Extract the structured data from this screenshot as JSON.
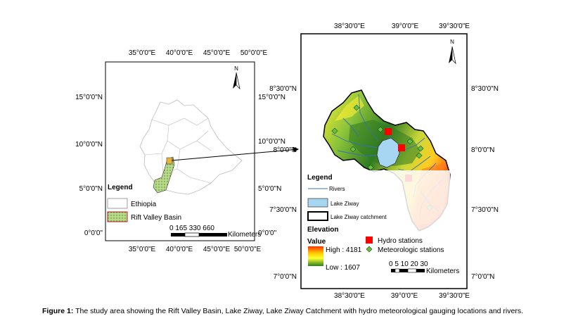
{
  "left_map": {
    "top_ticks": [
      "35°0'0\"E",
      "40°0'0\"E",
      "45°0'0\"E",
      "50°0'0\"E"
    ],
    "bottom_ticks": [
      "35°0'0\"E",
      "40°0'0\"E",
      "45°0'0\"E",
      "50°0'0\"E"
    ],
    "left_ticks": [
      "15°0'0\"N",
      "10°0'0\"N",
      "5°0'0\"N",
      "0°0'0\""
    ],
    "right_ticks": [
      "15°0'0\"N",
      "10°0'0\"N",
      "5°0'0\"N",
      "0°0'0\""
    ],
    "north_label": "N",
    "legend_title": "Legend",
    "legend_items": [
      "Ethiopia",
      "Rift Valley Basin"
    ],
    "scale_numbers": "0   165 330         660",
    "scale_unit": "Kilometers"
  },
  "right_map": {
    "top_ticks": [
      "38°30'0\"E",
      "39°0'0\"E",
      "39°30'0\"E"
    ],
    "bottom_ticks": [
      "38°30'0\"E",
      "39°0'0\"E",
      "39°30'0\"E"
    ],
    "left_ticks": [
      "8°30'0\"N",
      "8°0'0\"N",
      "7°30'0\"N",
      "7°0'0\"N"
    ],
    "right_ticks": [
      "8°30'0\"N",
      "8°0'0\"N",
      "7°30'0\"N",
      "7°0'0\"N"
    ],
    "north_label": "N",
    "legend_title": "Legend",
    "legend_rivers": "Rivers",
    "legend_lake": "Lake Ziway",
    "legend_catchment": "Lake Ziway catchment",
    "elevation_title": "Elevation",
    "value_label": "Value",
    "high_label": "High : 4181",
    "low_label": "Low : 1607",
    "hydro_label": "Hydro stations",
    "met_label": "Meteorologic stations",
    "scale_numbers": "0 5 10  20  30",
    "scale_unit": "Kilometers"
  },
  "colors": {
    "rift_fill": "#b8d88a",
    "lake": "#a7d6f2",
    "hydro": "#ff0000",
    "met": "#66c23a",
    "river": "#3a6fb5",
    "elev_high": "#ff3300",
    "elev_mid": "#ffff33",
    "elev_low": "#2e7d1e"
  },
  "caption": {
    "label": "Figure 1:",
    "text": " The study area showing the Rift Valley Basin, Lake Ziway, Lake Ziway Catchment with hydro meteorological gauging locations and rivers."
  }
}
